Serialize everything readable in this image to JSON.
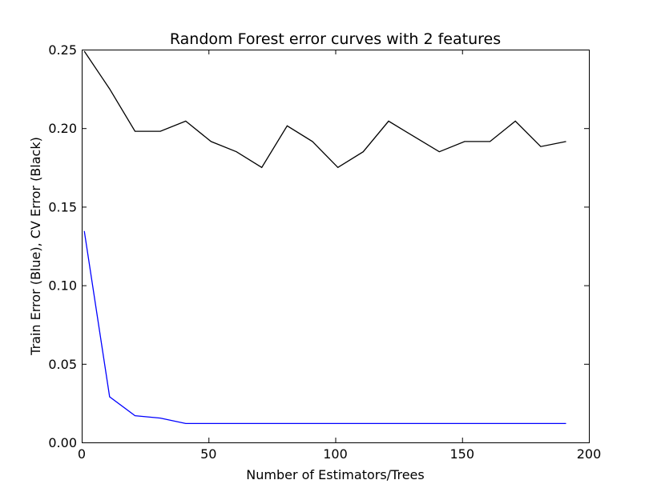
{
  "chart_data": {
    "type": "line",
    "title": "Random Forest error curves with 2 features",
    "xlabel": "Number of Estimators/Trees",
    "ylabel": "Train Error (Blue), CV Error (Black)",
    "xlim": [
      0,
      200
    ],
    "ylim": [
      0,
      0.25
    ],
    "xticks": [
      0,
      50,
      100,
      150,
      200
    ],
    "xtick_labels": [
      "0",
      "50",
      "100",
      "150",
      "200"
    ],
    "yticks": [
      0,
      0.05,
      0.1,
      0.15,
      0.2,
      0.25
    ],
    "ytick_labels": [
      "0.00",
      "0.05",
      "0.10",
      "0.15",
      "0.20",
      "0.25"
    ],
    "grid": false,
    "x": [
      1,
      11,
      21,
      31,
      41,
      51,
      61,
      71,
      81,
      91,
      101,
      111,
      121,
      131,
      141,
      151,
      161,
      171,
      181,
      191
    ],
    "series": [
      {
        "color": "#000000",
        "values": [
          0.249,
          0.225,
          0.198,
          0.198,
          0.2045,
          0.1915,
          0.185,
          0.175,
          0.2015,
          0.1915,
          0.175,
          0.185,
          0.2045,
          0.1947,
          0.185,
          0.1915,
          0.1915,
          0.2045,
          0.1883,
          0.1915
        ]
      },
      {
        "color": "#0000ff",
        "values": [
          0.1345,
          0.029,
          0.017,
          0.0155,
          0.012,
          0.012,
          0.012,
          0.012,
          0.012,
          0.012,
          0.012,
          0.012,
          0.012,
          0.012,
          0.012,
          0.012,
          0.012,
          0.012,
          0.012,
          0.012
        ]
      }
    ]
  }
}
